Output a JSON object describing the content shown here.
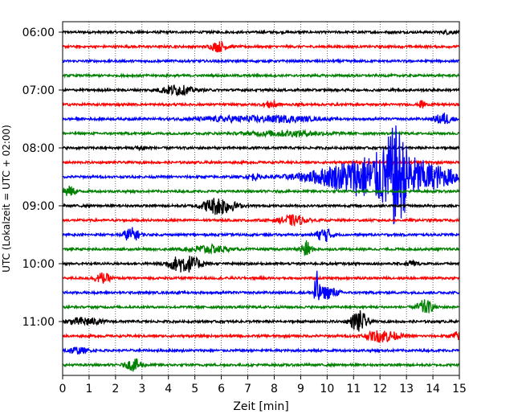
{
  "chart_data": {
    "type": "line",
    "title": "",
    "xlabel": "Zeit  [min]",
    "ylabel": "UTC (Lokalzeit = UTC + 02:00)",
    "xlim": [
      0,
      15
    ],
    "x_ticks": [
      0,
      1,
      2,
      3,
      4,
      5,
      6,
      7,
      8,
      9,
      10,
      11,
      12,
      13,
      14,
      15
    ],
    "y_ticks": [
      "06:00",
      "07:00",
      "08:00",
      "09:00",
      "10:00",
      "11:00"
    ],
    "row_start": "06:00",
    "row_interval_min": 15,
    "grid": "vertical-dotted",
    "legend": "none",
    "colors": [
      "#000000",
      "#ff0000",
      "#0000ff",
      "#008000"
    ],
    "series": [
      {
        "start": "06:00",
        "events": [
          [
            14.6,
            0.25,
            0.15
          ]
        ]
      },
      {
        "start": "06:15",
        "events": [
          [
            5.9,
            0.3,
            0.5
          ]
        ]
      },
      {
        "start": "06:30",
        "events": []
      },
      {
        "start": "06:45",
        "events": []
      },
      {
        "start": "07:00",
        "events": [
          [
            4.3,
            0.6,
            0.5
          ]
        ]
      },
      {
        "start": "07:15",
        "events": [
          [
            7.9,
            0.25,
            0.4
          ],
          [
            13.6,
            0.1,
            0.5
          ]
        ]
      },
      {
        "start": "07:30",
        "events": [
          [
            6.5,
            1.5,
            0.25
          ],
          [
            8.5,
            1.0,
            0.25
          ],
          [
            14.4,
            0.3,
            0.6
          ]
        ]
      },
      {
        "start": "07:45",
        "events": [
          [
            8.5,
            1.5,
            0.25
          ]
        ]
      },
      {
        "start": "08:00",
        "events": [
          [
            3.0,
            0.3,
            0.2
          ]
        ]
      },
      {
        "start": "08:15",
        "events": []
      },
      {
        "start": "08:30",
        "events": [
          [
            7.2,
            0.2,
            0.3
          ],
          [
            12.2,
            2.3,
            2.4
          ],
          [
            12.6,
            0.4,
            3.0
          ]
        ]
      },
      {
        "start": "08:45",
        "events": [
          [
            0.2,
            0.3,
            0.5
          ]
        ]
      },
      {
        "start": "09:00",
        "events": [
          [
            5.9,
            0.6,
            0.9
          ]
        ]
      },
      {
        "start": "09:15",
        "events": [
          [
            8.7,
            0.5,
            0.5
          ]
        ]
      },
      {
        "start": "09:30",
        "events": [
          [
            2.6,
            0.3,
            0.7
          ],
          [
            9.9,
            0.3,
            0.7
          ]
        ]
      },
      {
        "start": "09:45",
        "events": [
          [
            5.5,
            0.7,
            0.4
          ],
          [
            9.2,
            0.2,
            0.8
          ]
        ]
      },
      {
        "start": "10:00",
        "events": [
          [
            4.6,
            0.6,
            0.9
          ],
          [
            13.2,
            0.2,
            0.3
          ]
        ]
      },
      {
        "start": "10:15",
        "events": [
          [
            1.5,
            0.3,
            0.5
          ]
        ]
      },
      {
        "start": "10:30",
        "events": [
          [
            9.6,
            0.1,
            2.0
          ],
          [
            10.0,
            0.4,
            0.6
          ]
        ]
      },
      {
        "start": "10:45",
        "events": [
          [
            13.7,
            0.3,
            0.7
          ]
        ]
      },
      {
        "start": "11:00",
        "events": [
          [
            0.8,
            0.6,
            0.4
          ],
          [
            11.2,
            0.3,
            1.1
          ]
        ]
      },
      {
        "start": "11:15",
        "events": [
          [
            12.1,
            0.6,
            0.6
          ],
          [
            14.9,
            0.2,
            0.4
          ]
        ]
      },
      {
        "start": "11:30",
        "events": [
          [
            0.5,
            0.4,
            0.3
          ]
        ]
      },
      {
        "start": "11:45",
        "events": [
          [
            2.7,
            0.3,
            0.6
          ]
        ]
      }
    ]
  }
}
